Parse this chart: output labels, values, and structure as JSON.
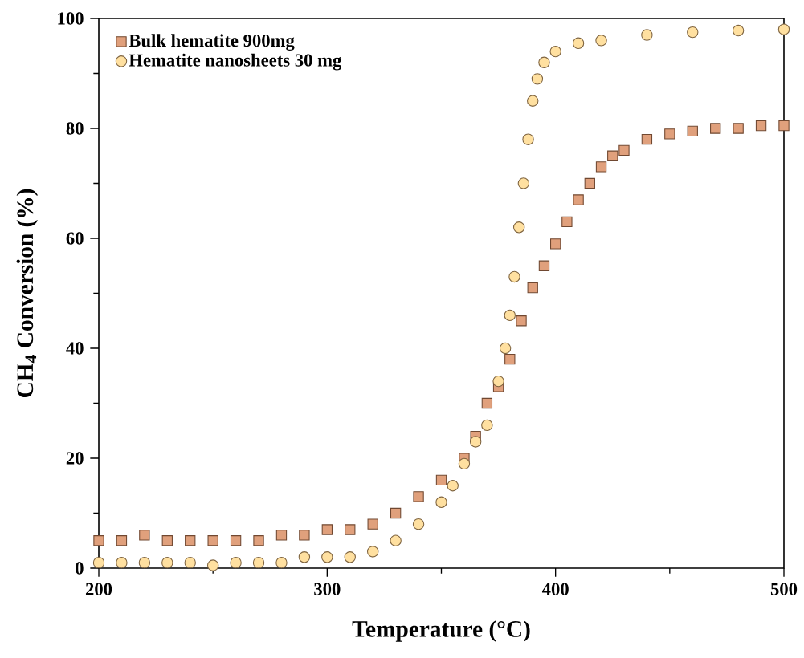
{
  "chart_data": {
    "type": "scatter",
    "xlabel": "Temperature (°C)",
    "ylabel": "CH$_{4}$ Conversion (%)",
    "xlim": [
      200,
      500
    ],
    "ylim": [
      0,
      100
    ],
    "xticks": [
      200,
      300,
      400,
      500
    ],
    "yticks": [
      0,
      20,
      40,
      60,
      80,
      100
    ],
    "legend": "top left",
    "grid": false,
    "series": [
      {
        "name": "Bulk hematite 900mg",
        "color": "#e0a07c",
        "marker": "square",
        "x": [
          200,
          210,
          220,
          230,
          240,
          250,
          260,
          270,
          280,
          290,
          300,
          310,
          320,
          330,
          340,
          350,
          360,
          365,
          370,
          375,
          380,
          385,
          390,
          395,
          400,
          405,
          410,
          415,
          420,
          425,
          430,
          440,
          450,
          460,
          470,
          480,
          490,
          500
        ],
        "values": [
          5,
          5,
          6,
          5,
          5,
          5,
          5,
          5,
          6,
          6,
          7,
          7,
          8,
          10,
          13,
          16,
          20,
          24,
          30,
          33,
          38,
          45,
          51,
          55,
          59,
          63,
          67,
          70,
          73,
          75,
          76,
          78,
          79,
          79.5,
          80,
          80,
          80.5,
          80.5
        ]
      },
      {
        "name": "Hematite nanosheets 30 mg",
        "color": "#ffe0a0",
        "marker": "circle",
        "x": [
          200,
          210,
          220,
          230,
          240,
          250,
          260,
          270,
          280,
          290,
          300,
          310,
          320,
          330,
          340,
          350,
          355,
          360,
          365,
          370,
          375,
          378,
          380,
          382,
          384,
          386,
          388,
          390,
          392,
          395,
          400,
          410,
          420,
          440,
          460,
          480,
          500
        ],
        "values": [
          1,
          1,
          1,
          1,
          1,
          0.5,
          1,
          1,
          1,
          2,
          2,
          2,
          3,
          5,
          8,
          12,
          15,
          19,
          23,
          26,
          34,
          40,
          46,
          53,
          62,
          70,
          78,
          85,
          89,
          92,
          94,
          95.5,
          96,
          97,
          97.5,
          97.8,
          98
        ]
      }
    ]
  }
}
